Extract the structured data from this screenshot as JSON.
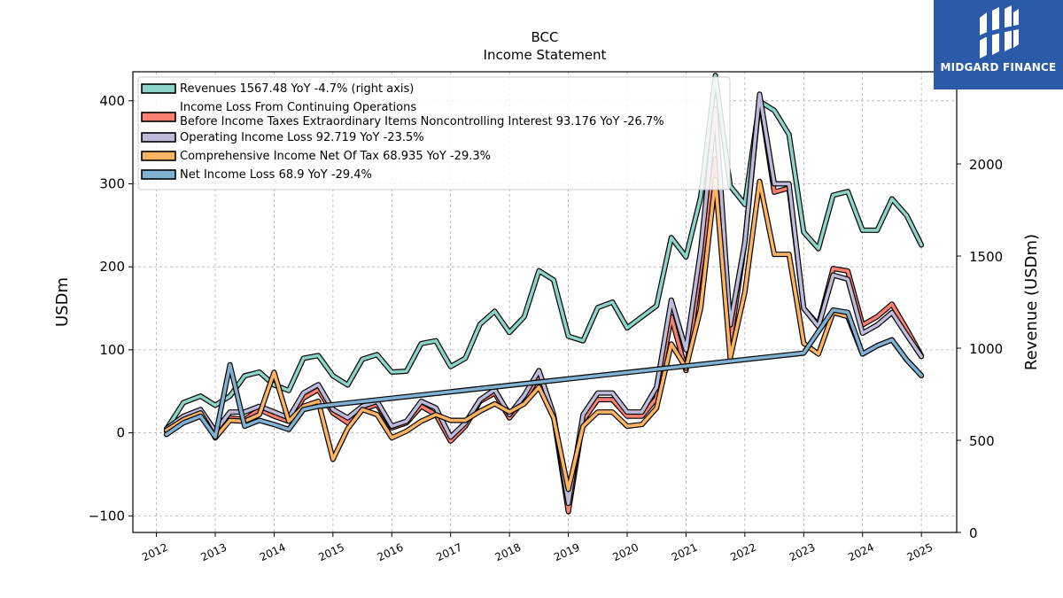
{
  "brand": {
    "name": "MIDGARD FINANCE"
  },
  "chart_data": {
    "type": "line",
    "title": "BCC",
    "subtitle": "Income Statement",
    "ylabel": "USDm",
    "y2label": "Revenue (USDm)",
    "ylim": [
      -120,
      435
    ],
    "y2lim": [
      0,
      2500
    ],
    "yticks": [
      -100,
      0,
      100,
      200,
      300,
      400
    ],
    "y2ticks": [
      0,
      500,
      1000,
      1500,
      2000
    ],
    "xlim": [
      2011.6,
      2025.6
    ],
    "xticks": [
      2012,
      2013,
      2014,
      2015,
      2016,
      2017,
      2018,
      2019,
      2020,
      2021,
      2022,
      2023,
      2024,
      2025
    ],
    "grid": true,
    "legend_position": "top-left",
    "x": [
      2012.17,
      2012.46,
      2012.75,
      2013.0,
      2013.25,
      2013.5,
      2013.75,
      2014.0,
      2014.25,
      2014.5,
      2014.75,
      2015.0,
      2015.25,
      2015.5,
      2015.75,
      2016.0,
      2016.25,
      2016.5,
      2016.75,
      2017.0,
      2017.25,
      2017.5,
      2017.75,
      2018.0,
      2018.25,
      2018.5,
      2018.75,
      2019.0,
      2019.25,
      2019.5,
      2019.75,
      2020.0,
      2020.25,
      2020.5,
      2020.75,
      2021.0,
      2021.25,
      2021.5,
      2021.75,
      2022.0,
      2022.25,
      2022.5,
      2022.75,
      2023.0,
      2023.25,
      2023.5,
      2023.75,
      2024.0,
      2024.25,
      2024.5,
      2024.75,
      2025.0
    ],
    "series": [
      {
        "name": "Revenues  1567.48 YoY -4.7% (right axis)",
        "axis": "right",
        "color": "#8dd3c7",
        "values": [
          560,
          705,
          740,
          690,
          740,
          850,
          870,
          800,
          770,
          945,
          960,
          850,
          800,
          940,
          965,
          870,
          875,
          1025,
          1040,
          900,
          945,
          1130,
          1200,
          1085,
          1170,
          1420,
          1370,
          1065,
          1040,
          1220,
          1250,
          1110,
          1170,
          1230,
          1600,
          1495,
          1820,
          2480,
          1880,
          1780,
          2340,
          2290,
          2160,
          1630,
          1540,
          1830,
          1850,
          1640,
          1640,
          1810,
          1720,
          1560
        ]
      },
      {
        "name": "Income Loss From Continuing Operations\nBefore Income Taxes Extraordinary Items Noncontrolling Interest  93.176 YoY -26.7%",
        "axis": "left",
        "color": "#fb8072",
        "values": [
          2,
          18,
          26,
          0,
          18,
          16,
          28,
          20,
          14,
          42,
          52,
          24,
          12,
          28,
          34,
          6,
          12,
          32,
          22,
          -10,
          8,
          38,
          48,
          18,
          40,
          68,
          20,
          -95,
          15,
          40,
          40,
          20,
          20,
          42,
          140,
          75,
          200,
          330,
          110,
          230,
          405,
          290,
          295,
          150,
          130,
          198,
          195,
          130,
          140,
          155,
          125,
          93
        ]
      },
      {
        "name": "Operating Income Loss  92.719 YoY -23.5%",
        "axis": "left",
        "color": "#bebada",
        "values": [
          5,
          20,
          28,
          2,
          25,
          25,
          32,
          25,
          18,
          48,
          58,
          28,
          18,
          32,
          38,
          8,
          14,
          38,
          30,
          -5,
          12,
          40,
          52,
          22,
          45,
          75,
          22,
          -85,
          22,
          48,
          48,
          25,
          25,
          55,
          160,
          100,
          220,
          390,
          130,
          230,
          408,
          300,
          300,
          150,
          128,
          190,
          185,
          120,
          130,
          145,
          118,
          92
        ]
      },
      {
        "name": "Comprehensive Income Net Of Tax  68.935 YoY -29.3%",
        "axis": "left",
        "color": "#fdb462",
        "values": [
          3,
          16,
          24,
          -6,
          15,
          14,
          22,
          73,
          14,
          32,
          38,
          -32,
          5,
          28,
          22,
          -6,
          2,
          14,
          22,
          15,
          15,
          26,
          35,
          25,
          35,
          55,
          18,
          -68,
          8,
          25,
          25,
          8,
          10,
          30,
          107,
          78,
          150,
          305,
          90,
          170,
          303,
          215,
          215,
          108,
          95,
          145,
          140,
          95,
          105,
          112,
          88,
          69
        ]
      },
      {
        "name": "Net Income Loss  68.9 YoY -29.4%",
        "axis": "left",
        "color": "#80b1d3",
        "values": [
          -2,
          12,
          20,
          -5,
          82,
          8,
          15,
          10,
          4,
          28,
          32,
          null,
          null,
          null,
          null,
          null,
          null,
          null,
          null,
          null,
          null,
          null,
          null,
          null,
          null,
          null,
          null,
          null,
          null,
          null,
          null,
          null,
          null,
          null,
          null,
          null,
          null,
          null,
          null,
          null,
          null,
          null,
          null,
          96,
          null,
          148,
          145,
          95,
          105,
          112,
          88,
          69
        ]
      }
    ]
  }
}
